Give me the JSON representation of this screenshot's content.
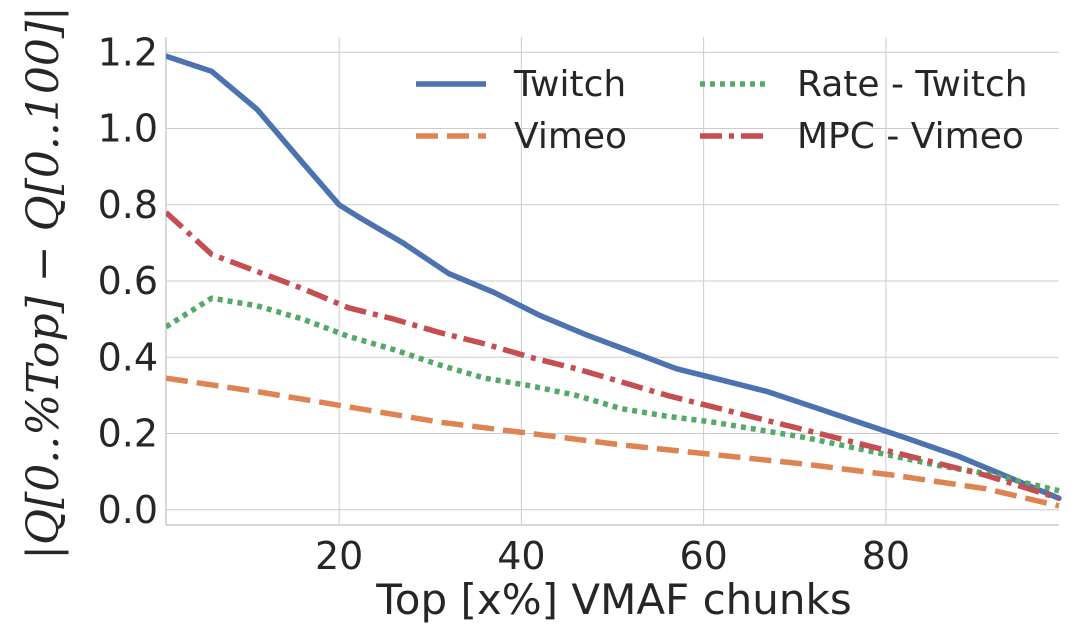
{
  "chart_data": {
    "type": "line",
    "title": "",
    "xlabel": "Top [x%] VMAF chunks",
    "ylabel": "|Q[0..%Top] − Q[0..100]|",
    "xlim": [
      1,
      99
    ],
    "ylim": [
      -0.04,
      1.24
    ],
    "xticks": [
      20,
      40,
      60,
      80
    ],
    "xtick_labels": [
      "20",
      "40",
      "60",
      "80"
    ],
    "yticks": [
      0.0,
      0.2,
      0.4,
      0.6,
      0.8,
      1.0,
      1.2
    ],
    "ytick_labels": [
      "0.0",
      "0.2",
      "0.4",
      "0.6",
      "0.8",
      "1.0",
      "1.2"
    ],
    "grid": true,
    "legend_position": "top-right",
    "series": [
      {
        "name": "Twitch",
        "color": "#4c72b0",
        "style": "solid",
        "x": [
          1,
          6,
          11,
          16,
          20,
          22,
          27,
          32,
          37,
          42,
          47,
          52,
          57,
          62,
          67,
          72,
          77,
          82,
          88,
          93,
          99
        ],
        "y": [
          1.19,
          1.15,
          1.05,
          0.91,
          0.8,
          0.77,
          0.7,
          0.62,
          0.57,
          0.51,
          0.46,
          0.415,
          0.37,
          0.34,
          0.31,
          0.27,
          0.23,
          0.19,
          0.14,
          0.09,
          0.03
        ]
      },
      {
        "name": "Vimeo",
        "color": "#dd8452",
        "style": "dashed",
        "x": [
          1,
          11,
          21,
          31,
          41,
          51,
          61,
          71,
          81,
          91,
          99
        ],
        "y": [
          0.345,
          0.31,
          0.27,
          0.23,
          0.2,
          0.17,
          0.145,
          0.12,
          0.09,
          0.055,
          0.01
        ]
      },
      {
        "name": "Rate - Twitch",
        "color": "#55a868",
        "style": "dotted",
        "x": [
          1,
          6,
          11,
          16,
          21,
          26,
          31,
          36,
          41,
          46,
          51,
          56,
          61,
          66,
          71,
          76,
          81,
          86,
          91,
          99
        ],
        "y": [
          0.48,
          0.555,
          0.535,
          0.5,
          0.455,
          0.42,
          0.38,
          0.345,
          0.325,
          0.3,
          0.265,
          0.245,
          0.23,
          0.21,
          0.19,
          0.165,
          0.14,
          0.115,
          0.095,
          0.05
        ]
      },
      {
        "name": "MPC - Vimeo",
        "color": "#c44e52",
        "style": "dashdot",
        "x": [
          1,
          6,
          11,
          16,
          21,
          26,
          31,
          36,
          41,
          46,
          51,
          56,
          61,
          66,
          71,
          76,
          81,
          86,
          91,
          99
        ],
        "y": [
          0.78,
          0.67,
          0.625,
          0.58,
          0.53,
          0.5,
          0.465,
          0.435,
          0.4,
          0.37,
          0.335,
          0.3,
          0.27,
          0.24,
          0.21,
          0.18,
          0.15,
          0.12,
          0.09,
          0.03
        ]
      }
    ]
  }
}
